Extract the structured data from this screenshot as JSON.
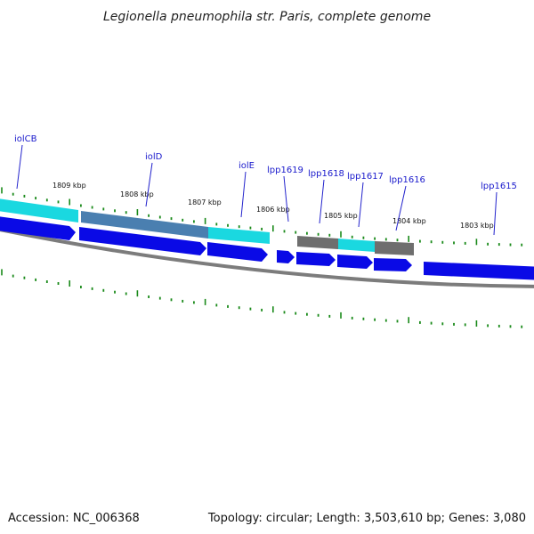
{
  "title": "Legionella pneumophila str. Paris, complete genome",
  "accession": "Accession: NC_006368",
  "summary": "Topology: circular; Length: 3,503,610 bp; Genes: 3,080",
  "kbp_labels": [
    "1809 kbp",
    "1808 kbp",
    "1807 kbp",
    "1806 kbp",
    "1805 kbp",
    "1804 kbp",
    "1803 kbp"
  ],
  "genes": [
    {
      "name": "iolCB"
    },
    {
      "name": "iolD"
    },
    {
      "name": "iolE"
    },
    {
      "name": "lpp1619"
    },
    {
      "name": "lpp1618"
    },
    {
      "name": "lpp1617"
    },
    {
      "name": "lpp1616"
    },
    {
      "name": "lpp1615"
    }
  ],
  "colors": {
    "cds_arrow": "#0a0ae6",
    "cyan_feature": "#1ad8e0",
    "steel_feature": "#4a7fb0",
    "gray_feature": "#6e6e6e",
    "backbone": "#8a8a8a",
    "tick": "#1a8a1a",
    "label_link": "#2222cc"
  }
}
